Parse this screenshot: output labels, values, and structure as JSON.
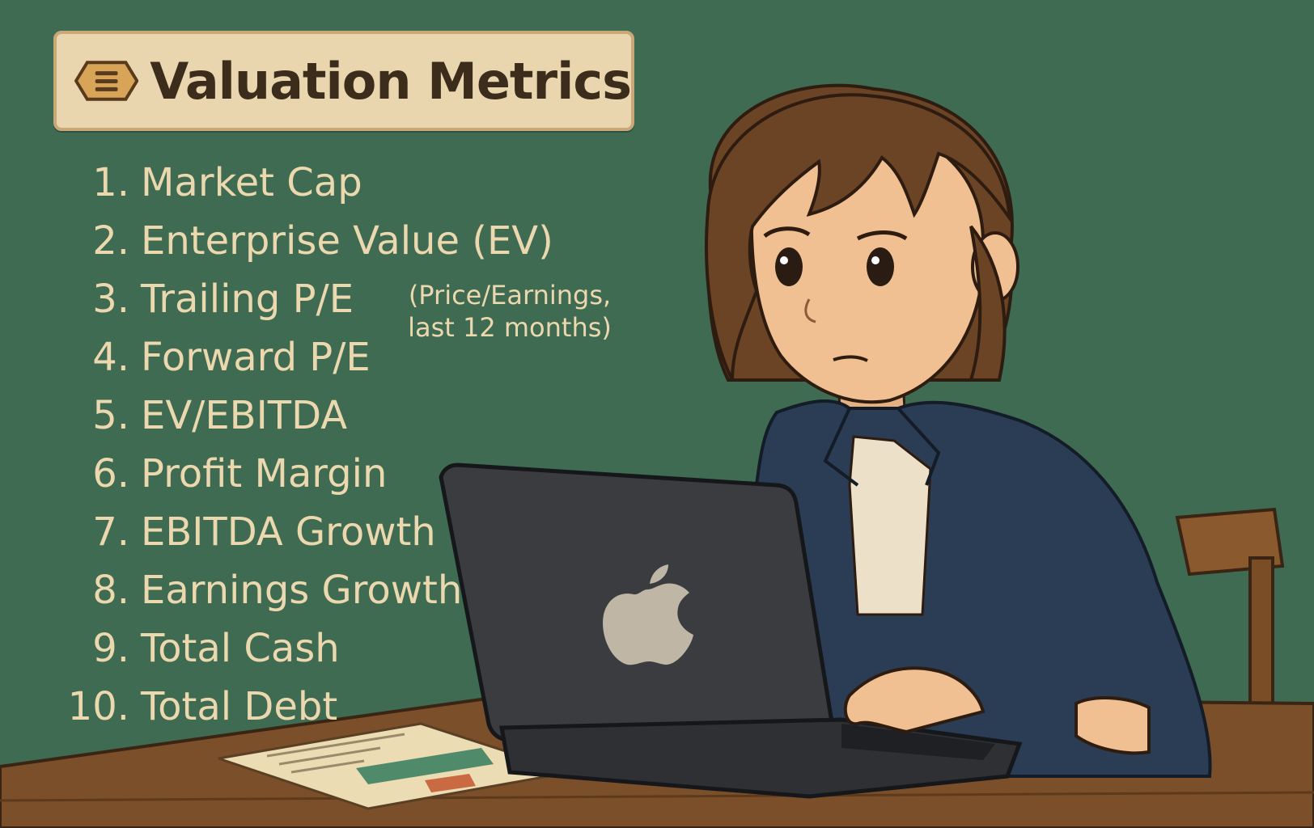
{
  "title": {
    "text": "Valuation Metrics",
    "icon": "menu-hexagon-icon"
  },
  "metrics": [
    {
      "number": "1.",
      "label": "Market Cap"
    },
    {
      "number": "2.",
      "label": "Enterprise Value (EV)"
    },
    {
      "number": "3.",
      "label": "Trailing P/E"
    },
    {
      "number": "4.",
      "label": "Forward P/E"
    },
    {
      "number": "5.",
      "label": "EV/EBITDA"
    },
    {
      "number": "6.",
      "label": "Profit Margin"
    },
    {
      "number": "7.",
      "label": "EBITDA Growth"
    },
    {
      "number": "8.",
      "label": "Earnings Growth"
    },
    {
      "number": "9.",
      "label": "Total Cash"
    },
    {
      "number": "10.",
      "label": "Total Debt"
    }
  ],
  "trailing_note": {
    "line1": "(Price/Earnings,",
    "line2": "last 12 months)"
  },
  "colors": {
    "background": "#3f6b52",
    "title_box": "#ead6ae",
    "text": "#ecd8ae",
    "jacket": "#2a3d54",
    "laptop": "#3a3c40",
    "desk": "#7a4f2a",
    "hair": "#6b4426"
  },
  "illustration": {
    "subject": "woman-with-laptop-illustration",
    "laptop_logo": "apple-logo-icon",
    "paper": "printed-report-with-chart"
  }
}
